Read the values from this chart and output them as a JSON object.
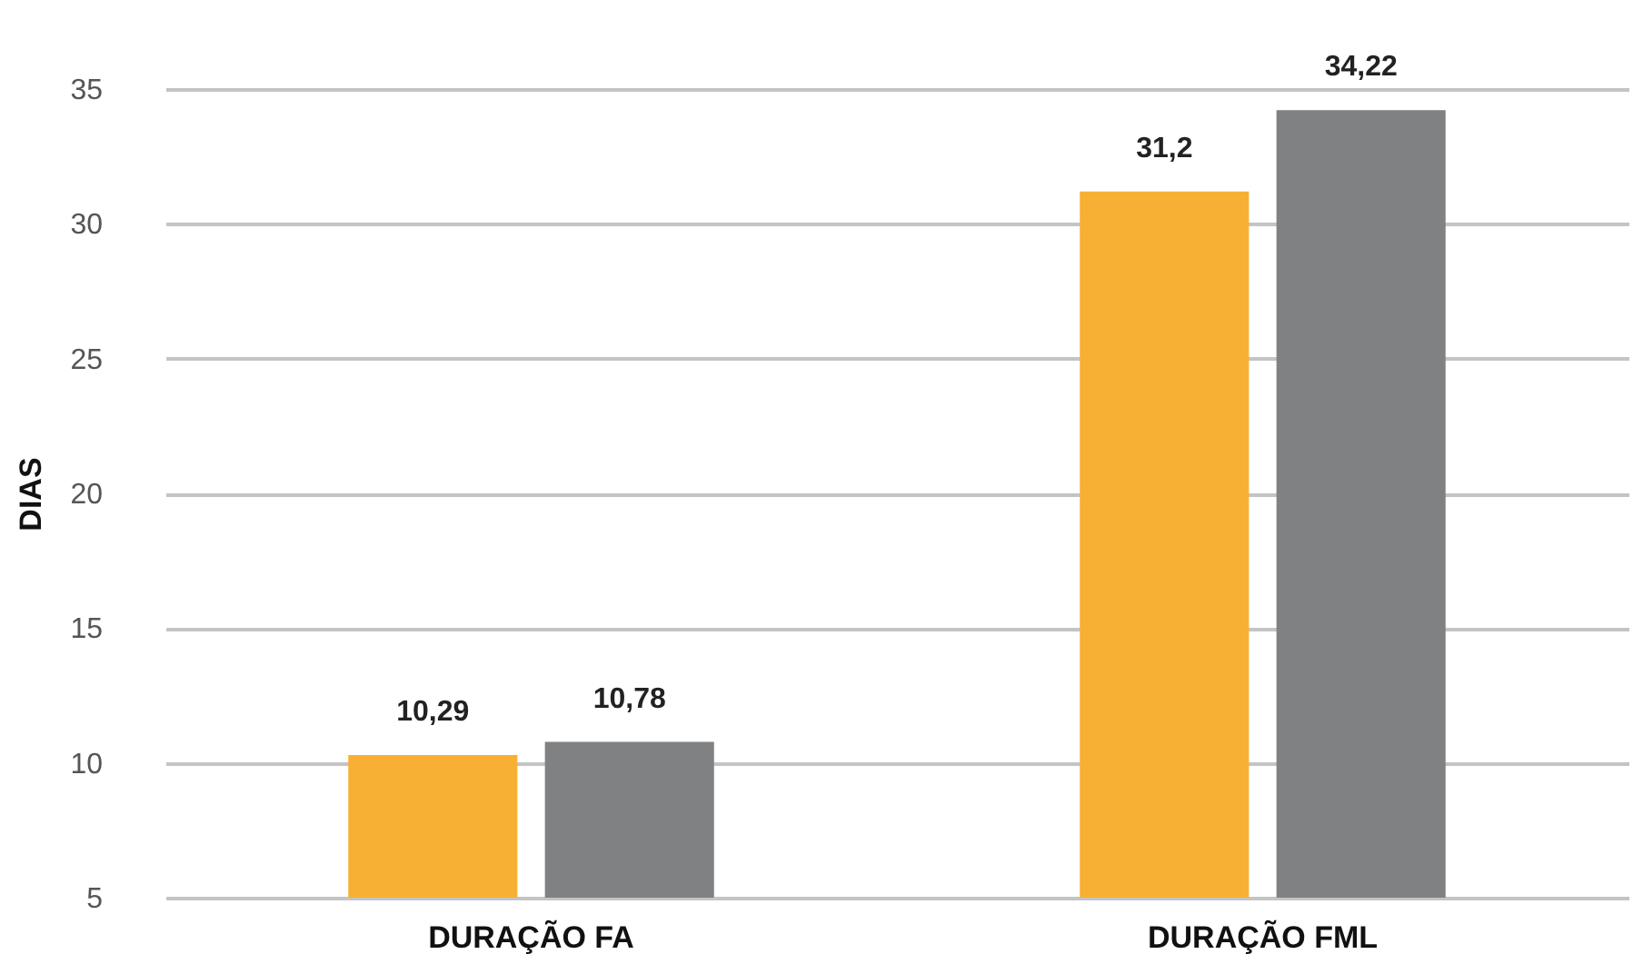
{
  "chart_data": {
    "type": "bar",
    "ylabel": "DIAS",
    "categories": [
      "DURAÇÃO FA",
      "DURAÇÃO FML"
    ],
    "series": [
      {
        "color": "#f8b034",
        "values": [
          10.29,
          31.2
        ],
        "value_labels": [
          "10,29",
          "31,2"
        ]
      },
      {
        "color": "#808183",
        "values": [
          10.78,
          34.22
        ],
        "value_labels": [
          "10,78",
          "34,22"
        ]
      }
    ],
    "ylim": [
      5,
      35
    ],
    "yticks": [
      5,
      10,
      15,
      20,
      25,
      30,
      35
    ],
    "grid": "y",
    "legend": false
  }
}
